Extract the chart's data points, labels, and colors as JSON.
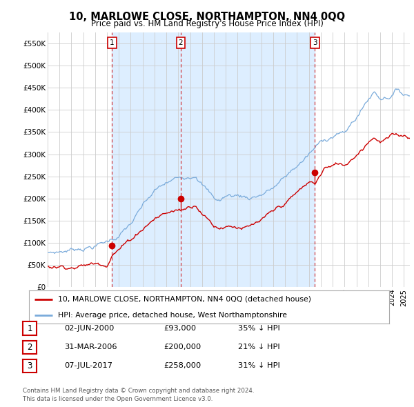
{
  "title": "10, MARLOWE CLOSE, NORTHAMPTON, NN4 0QQ",
  "subtitle": "Price paid vs. HM Land Registry's House Price Index (HPI)",
  "ylim": [
    0,
    575000
  ],
  "yticks": [
    0,
    50000,
    100000,
    150000,
    200000,
    250000,
    300000,
    350000,
    400000,
    450000,
    500000,
    550000
  ],
  "ytick_labels": [
    "£0",
    "£50K",
    "£100K",
    "£150K",
    "£200K",
    "£250K",
    "£300K",
    "£350K",
    "£400K",
    "£450K",
    "£500K",
    "£550K"
  ],
  "hpi_color": "#7aabdb",
  "price_color": "#cc0000",
  "shade_color": "#ddeeff",
  "bg_color": "#ffffff",
  "grid_color": "#cccccc",
  "xmin": 1995.0,
  "xmax": 2025.5,
  "sale_years": [
    2000.42,
    2006.21,
    2017.51
  ],
  "sale_prices": [
    93000,
    200000,
    258000
  ],
  "sale_labels": [
    "1",
    "2",
    "3"
  ],
  "legend_price_label": "10, MARLOWE CLOSE, NORTHAMPTON, NN4 0QQ (detached house)",
  "legend_hpi_label": "HPI: Average price, detached house, West Northamptonshire",
  "table_rows": [
    {
      "num": "1",
      "date": "02-JUN-2000",
      "price": "£93,000",
      "hpi": "35% ↓ HPI"
    },
    {
      "num": "2",
      "date": "31-MAR-2006",
      "price": "£200,000",
      "hpi": "21% ↓ HPI"
    },
    {
      "num": "3",
      "date": "07-JUL-2017",
      "price": "£258,000",
      "hpi": "31% ↓ HPI"
    }
  ],
  "footer": "Contains HM Land Registry data © Crown copyright and database right 2024.\nThis data is licensed under the Open Government Licence v3.0."
}
